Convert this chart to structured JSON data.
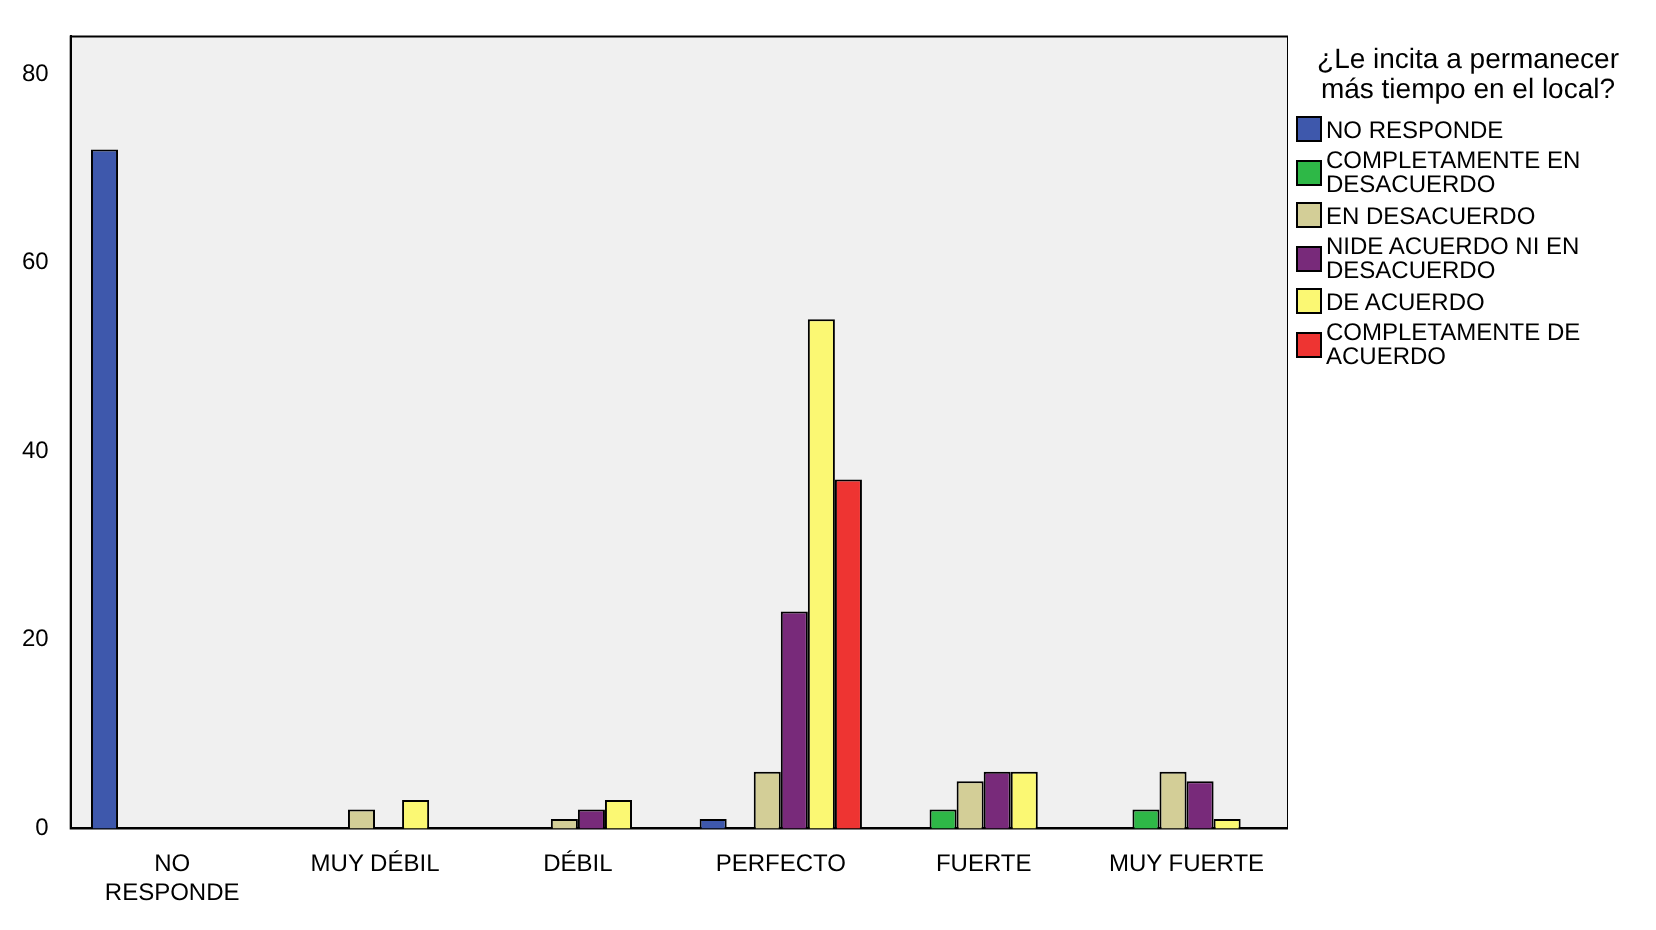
{
  "chart_data": {
    "type": "bar",
    "legend_title": "¿Le incita a permanecer más tiempo en el local?",
    "categories": [
      "NO RESPONDE",
      "MUY DÉBIL",
      "DÉBIL",
      "PERFECTO",
      "FUERTE",
      "MUY FUERTE"
    ],
    "series": [
      {
        "name": "NO RESPONDE",
        "color": "#3e58ac",
        "values": [
          72,
          null,
          null,
          1,
          null,
          null
        ]
      },
      {
        "name": "COMPLETAMENTE EN DESACUERDO",
        "color": "#2eb847",
        "values": [
          null,
          null,
          null,
          null,
          2,
          2
        ]
      },
      {
        "name": "EN DESACUERDO",
        "color": "#d3ce97",
        "values": [
          null,
          2,
          1,
          6,
          5,
          6
        ]
      },
      {
        "name": "NIDE ACUERDO NI EN DESACUERDO",
        "color": "#782a7a",
        "values": [
          null,
          null,
          2,
          23,
          6,
          5
        ]
      },
      {
        "name": "DE ACUERDO",
        "color": "#fbf873",
        "values": [
          null,
          3,
          3,
          54,
          6,
          1
        ]
      },
      {
        "name": "COMPLETAMENTE DE ACUERDO",
        "color": "#ee3432",
        "values": [
          null,
          null,
          null,
          37,
          null,
          null
        ]
      }
    ],
    "ylim": [
      0,
      84
    ],
    "yticks": [
      0,
      20,
      40,
      60,
      80
    ],
    "grid": false,
    "legend": "right"
  }
}
